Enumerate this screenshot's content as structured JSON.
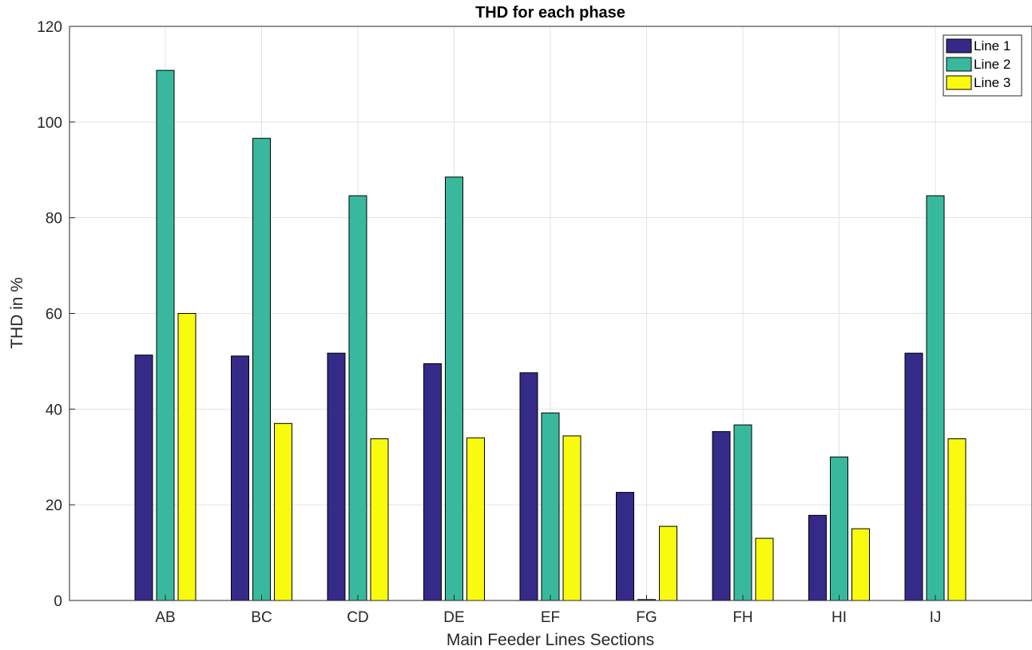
{
  "chart_data": {
    "type": "bar",
    "title": "THD for each phase",
    "xlabel": "Main Feeder Lines Sections",
    "ylabel": "THD in %",
    "categories": [
      "AB",
      "BC",
      "CD",
      "DE",
      "EF",
      "FG",
      "FH",
      "HI",
      "IJ"
    ],
    "ylim": [
      0,
      120
    ],
    "yticks": [
      0,
      20,
      40,
      60,
      80,
      100,
      120
    ],
    "grid": true,
    "legend_position": "top-right",
    "series": [
      {
        "name": "Line 1",
        "color": "#352a87",
        "values": [
          51.3,
          51.1,
          51.7,
          49.5,
          47.6,
          22.6,
          35.3,
          17.8,
          51.7
        ]
      },
      {
        "name": "Line 2",
        "color": "#38b99e",
        "values": [
          110.8,
          96.6,
          84.6,
          88.5,
          39.2,
          0.2,
          36.7,
          30.0,
          84.6
        ]
      },
      {
        "name": "Line 3",
        "color": "#f9fb0e",
        "values": [
          60.0,
          37.0,
          33.8,
          34.0,
          34.4,
          15.5,
          13.0,
          15.0,
          33.8
        ]
      }
    ]
  }
}
